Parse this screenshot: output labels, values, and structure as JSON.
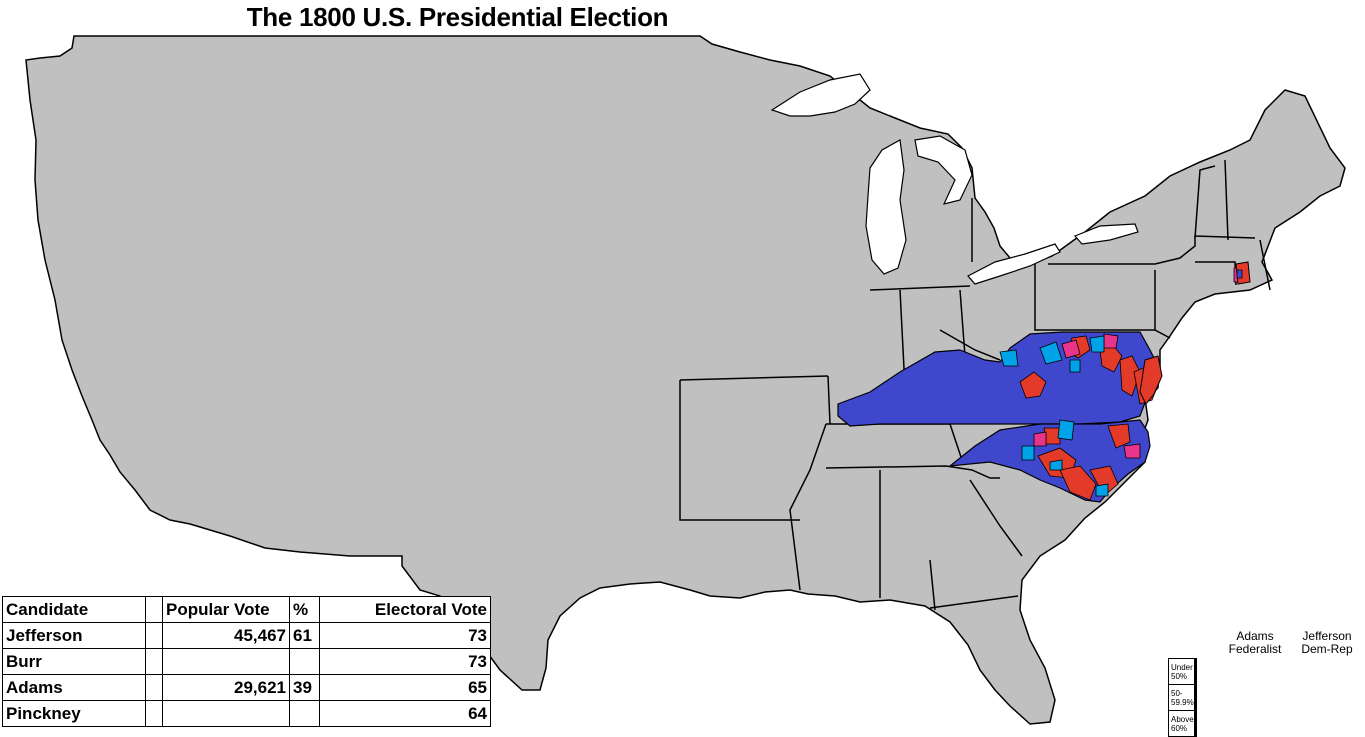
{
  "title": "The 1800 U.S. Presidential Election",
  "colors": {
    "land": "#c0c0c0",
    "water": "#ffffff",
    "border": "#000000",
    "fed_under50": "#f3a6c8",
    "fed_50_59": "#e8358a",
    "fed_above60": "#e33a2a",
    "rep_under50": "#99d9ea",
    "rep_50_59": "#00a2e8",
    "rep_above60": "#3f48cc"
  },
  "results_table": {
    "headers": {
      "candidate": "Candidate",
      "blank": "",
      "popular": "Popular Vote",
      "pct": "%",
      "electoral": "Electoral Vote"
    },
    "rows": [
      {
        "candidate": "Jefferson",
        "popular": "45,467",
        "pct": "61",
        "electoral": "73"
      },
      {
        "candidate": "Burr",
        "popular": "",
        "pct": "",
        "electoral": "73"
      },
      {
        "candidate": "Adams",
        "popular": "29,621",
        "pct": "39",
        "electoral": "65"
      },
      {
        "candidate": "Pinckney",
        "popular": "",
        "pct": "",
        "electoral": "64"
      }
    ]
  },
  "legend": {
    "col1": "Adams\nFederalist",
    "col2": "Jefferson\nDem-Rep",
    "rows": [
      {
        "label": "Under 50%",
        "fed_color": "#f3a6c8",
        "rep_color": "#99d9ea"
      },
      {
        "label": "50-59.9%",
        "fed_color": "#e8358a",
        "rep_color": "#00a2e8"
      },
      {
        "label": "Above 60%",
        "fed_color": "#e33a2a",
        "rep_color": "#3f48cc"
      }
    ]
  }
}
